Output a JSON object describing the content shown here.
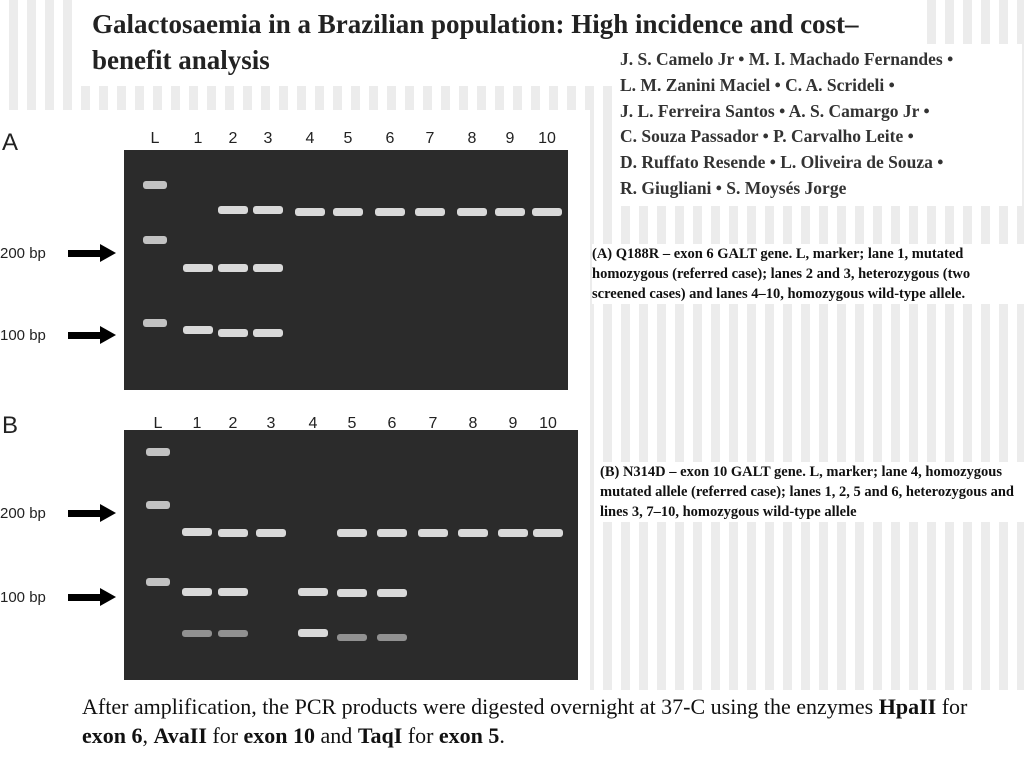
{
  "header": {
    "title": "Galactosaemia in a Brazilian population: High incidence and cost–benefit analysis",
    "authors": [
      "J. S. Camelo Jr • M. I. Machado Fernandes •",
      "L. M. Zanini Maciel • C. A. Scrideli •",
      "J. L. Ferreira Santos • A. S. Camargo Jr •",
      "C. Souza Passador • P. Carvalho Leite •",
      "D. Ruffato Resende • L. Oliveira de Souza •",
      "R. Giugliani • S. Moysés Jorge"
    ]
  },
  "figure": {
    "panels": [
      {
        "label": "A",
        "lanes": [
          "L",
          "1",
          "2",
          "3",
          "4",
          "5",
          "6",
          "7",
          "8",
          "9",
          "10"
        ],
        "markers": [
          "200 bp",
          "100 bp"
        ],
        "caption": "(A) Q188R – exon 6 GALT gene. L, marker; lane 1, mutated homozygous (referred case); lanes 2 and 3, heterozygous (two screened cases) and lanes 4–10, homozygous wild-type allele."
      },
      {
        "label": "B",
        "lanes": [
          "L",
          "1",
          "2",
          "3",
          "4",
          "5",
          "6",
          "7",
          "8",
          "9",
          "10"
        ],
        "markers": [
          "200 bp",
          "100 bp"
        ],
        "caption": "(B) N314D – exon 10 GALT gene. L, marker; lane 4, homozygous mutated allele (referred case); lanes 1, 2, 5 and 6, heterozygous and lines 3, 7–10, homozygous wild-type allele"
      }
    ]
  },
  "footer": {
    "runs": [
      {
        "text": "After amplification, the PCR products were digested overnight at 37-C using the enzymes ",
        "bold": false
      },
      {
        "text": "HpaII",
        "bold": true
      },
      {
        "text": " for ",
        "bold": false
      },
      {
        "text": "exon 6",
        "bold": true
      },
      {
        "text": ", ",
        "bold": false
      },
      {
        "text": "AvaII",
        "bold": true
      },
      {
        "text": " for ",
        "bold": false
      },
      {
        "text": "exon 10",
        "bold": true
      },
      {
        "text": " and ",
        "bold": false
      },
      {
        "text": "TaqI",
        "bold": true
      },
      {
        "text": " for ",
        "bold": false
      },
      {
        "text": "exon 5",
        "bold": true
      },
      {
        "text": ".",
        "bold": false
      }
    ]
  }
}
